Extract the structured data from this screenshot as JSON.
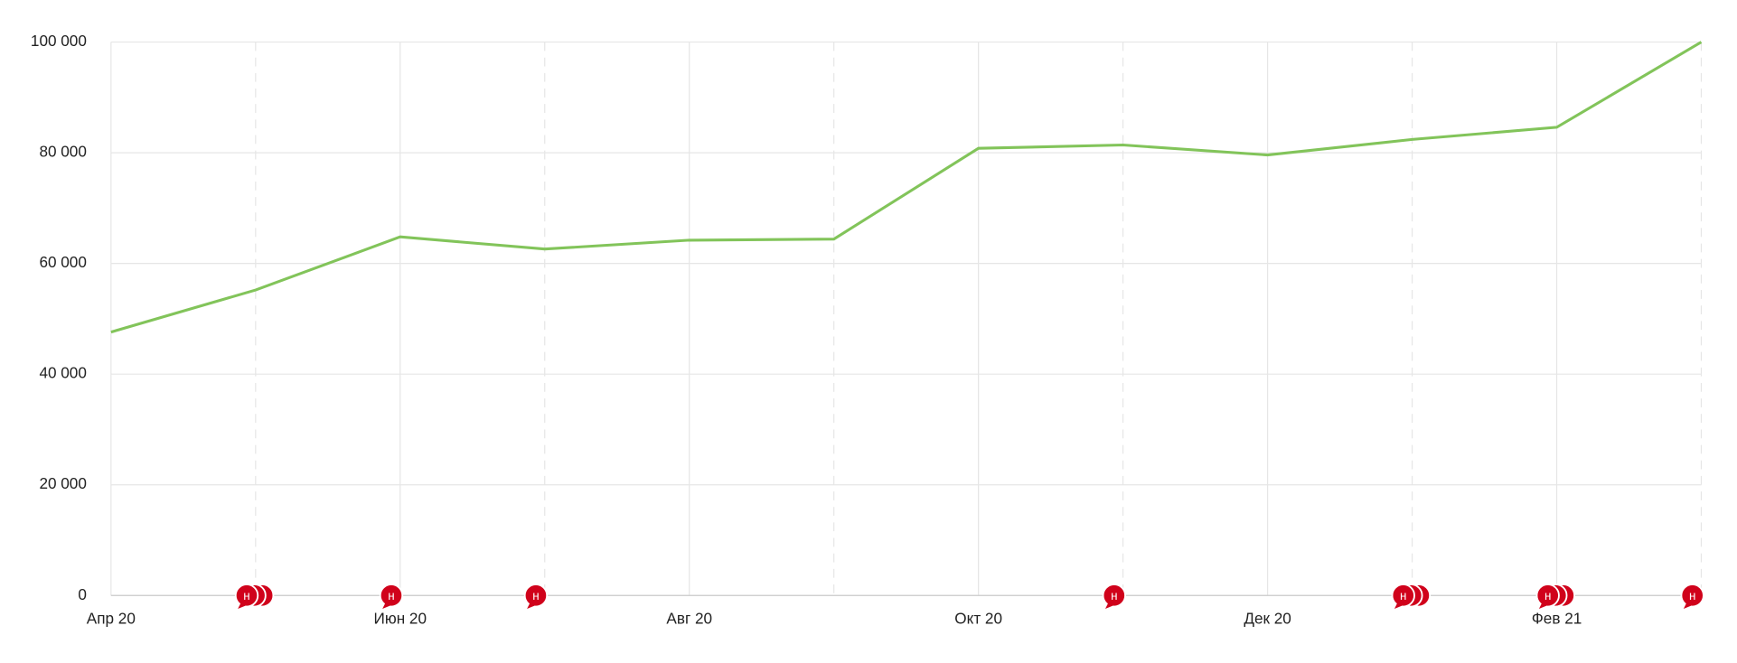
{
  "chart_data": {
    "type": "line",
    "categories": [
      "Апр 20",
      null,
      "Июн 20",
      null,
      "Авг 20",
      null,
      "Окт 20",
      null,
      "Дек 20",
      null,
      "Фев 21",
      null
    ],
    "series": [
      {
        "name": "value",
        "color": "#82c45a",
        "values": [
          47600,
          55200,
          64800,
          62600,
          64200,
          64400,
          80800,
          81400,
          79600,
          82400,
          84600,
          100000
        ]
      }
    ],
    "ylim": [
      0,
      100000
    ],
    "yticks": [
      0,
      {
        "value": 20000,
        "label": "20 000"
      },
      {
        "value": 40000,
        "label": "40 000"
      },
      {
        "value": 60000,
        "label": "60 000"
      },
      {
        "value": 80000,
        "label": "80 000"
      },
      {
        "value": 100000,
        "label": "100 000"
      }
    ],
    "grid": true,
    "markers": [
      {
        "x": 1,
        "count": 3,
        "label": "н"
      },
      {
        "x": 2,
        "count": 1,
        "label": "н"
      },
      {
        "x": 3,
        "count": 1,
        "label": "н"
      },
      {
        "x": 7,
        "count": 1,
        "label": "н"
      },
      {
        "x": 9,
        "count": 3,
        "label": "н"
      },
      {
        "x": 10,
        "count": 3,
        "label": "н"
      },
      {
        "x": 11,
        "count": 1,
        "label": "н"
      }
    ],
    "marker_color": "#d0021b"
  }
}
